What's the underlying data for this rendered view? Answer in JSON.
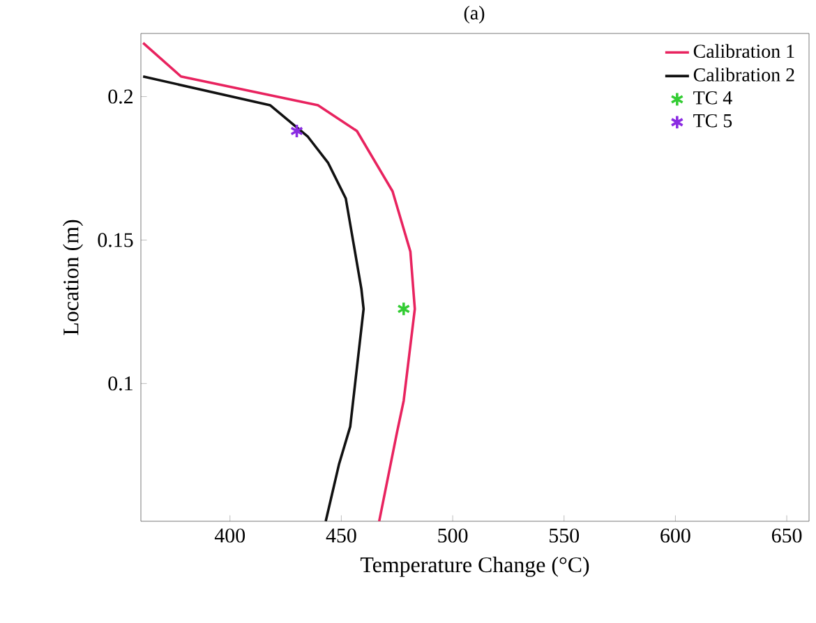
{
  "chart_data": {
    "type": "line",
    "title": "(a)",
    "xlabel": "Temperature Change (°C)",
    "ylabel": "Location (m)",
    "xlim": [
      360,
      660
    ],
    "ylim": [
      0.052,
      0.222
    ],
    "xticks": [
      400,
      450,
      500,
      550,
      600,
      650
    ],
    "yticks": [
      0.1,
      0.15,
      0.2
    ],
    "legend": "top right",
    "grid": false,
    "series": [
      {
        "name": "Calibration 1",
        "color": "#e8235f",
        "x": [
          361,
          378,
          439.5,
          457,
          473,
          481,
          483,
          478,
          475,
          467
        ],
        "values": [
          0.2187,
          0.207,
          0.197,
          0.188,
          0.167,
          0.146,
          0.126,
          0.094,
          0.083,
          0.052
        ]
      },
      {
        "name": "Calibration 2",
        "color": "#111111",
        "x": [
          361,
          418,
          435,
          444,
          452,
          459,
          460,
          454,
          449,
          443
        ],
        "values": [
          0.207,
          0.197,
          0.186,
          0.177,
          0.1645,
          0.133,
          0.126,
          0.085,
          0.072,
          0.052
        ]
      },
      {
        "name": "TC 4",
        "type": "scatter",
        "marker": "cross",
        "color": "#33cc33",
        "x": [
          478
        ],
        "values": [
          0.126
        ]
      },
      {
        "name": "TC 5",
        "type": "scatter",
        "marker": "cross",
        "color": "#8a2be2",
        "x": [
          430
        ],
        "values": [
          0.188
        ]
      }
    ]
  }
}
